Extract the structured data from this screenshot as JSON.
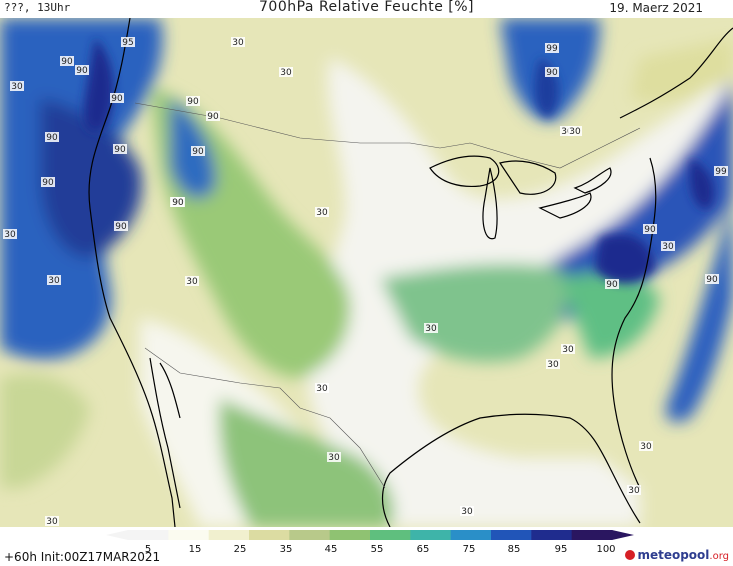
{
  "header": {
    "left": "???, 13Uhr",
    "title": "700hPa Relative Feuchte [%]",
    "date": "19. Maerz 2021"
  },
  "footer": {
    "run": "+60h  Init:00Z17MAR2021"
  },
  "logo": {
    "brand": "meteopool",
    "tld": ".org"
  },
  "legend": {
    "ticks": [
      "5",
      "15",
      "25",
      "35",
      "45",
      "55",
      "65",
      "75",
      "85",
      "95",
      "100"
    ],
    "colors": [
      "#f4f4f4",
      "#fbfbf0",
      "#f1f0cf",
      "#dcdca2",
      "#b8c98a",
      "#8fc272",
      "#5fbf7e",
      "#3eb4a9",
      "#2a8fc8",
      "#2155b8",
      "#1f2c8e",
      "#2a1660"
    ]
  },
  "map_labels": [
    {
      "text": "95"
    },
    {
      "text": "30"
    },
    {
      "text": "90"
    },
    {
      "text": "90"
    },
    {
      "text": "30"
    },
    {
      "text": "90"
    },
    {
      "text": "90"
    },
    {
      "text": "90"
    },
    {
      "text": "90"
    },
    {
      "text": "90"
    },
    {
      "text": "90"
    },
    {
      "text": "90"
    },
    {
      "text": "30"
    },
    {
      "text": "90"
    },
    {
      "text": "30"
    },
    {
      "text": "30"
    },
    {
      "text": "90"
    },
    {
      "text": "30"
    },
    {
      "text": "30"
    },
    {
      "text": "30"
    },
    {
      "text": "99"
    },
    {
      "text": "90"
    },
    {
      "text": "30"
    },
    {
      "text": "99"
    },
    {
      "text": "90"
    },
    {
      "text": "30"
    },
    {
      "text": "90"
    },
    {
      "text": "90"
    },
    {
      "text": "30"
    },
    {
      "text": "30"
    },
    {
      "text": "30"
    },
    {
      "text": "30"
    },
    {
      "text": "30"
    },
    {
      "text": "30"
    },
    {
      "text": "30"
    },
    {
      "text": "30"
    },
    {
      "text": "30"
    },
    {
      "text": "30"
    }
  ]
}
